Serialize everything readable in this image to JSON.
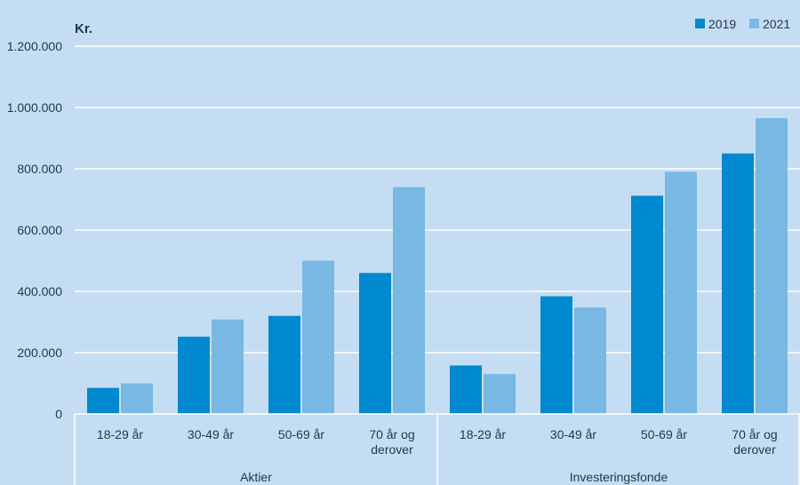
{
  "chart_data": {
    "type": "bar",
    "ylabel": "Kr.",
    "ylim": [
      0,
      1200000
    ],
    "yticks": [
      "0",
      "200.000",
      "400.000",
      "600.000",
      "800.000",
      "1.000.000",
      "1.200.000"
    ],
    "grid": true,
    "legend_position": "top-right",
    "groups": [
      {
        "label": "Aktier",
        "categories": [
          {
            "label": [
              "18-29 år"
            ]
          },
          {
            "label": [
              "30-49 år"
            ]
          },
          {
            "label": [
              "50-69 år"
            ]
          },
          {
            "label": [
              "70 år og",
              "derover"
            ]
          }
        ]
      },
      {
        "label": "Investeringsfonde",
        "categories": [
          {
            "label": [
              "18-29 år"
            ]
          },
          {
            "label": [
              "30-49 år"
            ]
          },
          {
            "label": [
              "50-69 år"
            ]
          },
          {
            "label": [
              "70 år og",
              "derover"
            ]
          }
        ]
      }
    ],
    "series": [
      {
        "name": "2019",
        "color": "#0089cf",
        "values": [
          85000,
          252000,
          320000,
          460000,
          158000,
          384000,
          712000,
          850000
        ]
      },
      {
        "name": "2021",
        "color": "#79b7e4",
        "values": [
          100000,
          308000,
          500000,
          740000,
          130000,
          347000,
          790000,
          965000
        ]
      }
    ]
  }
}
